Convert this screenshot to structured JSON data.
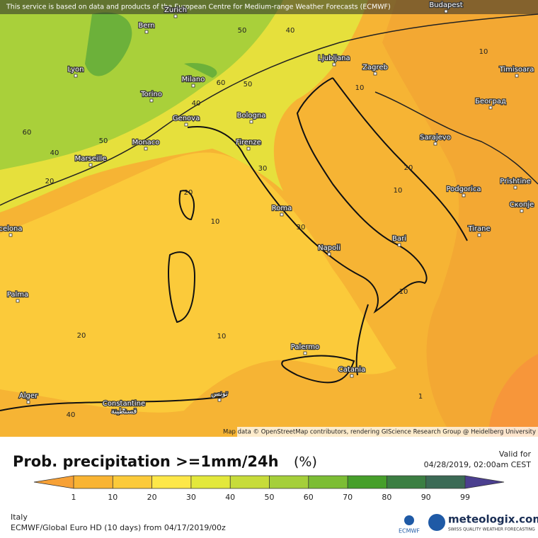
{
  "header": {
    "notice": "This service is based on data and products of the European Centre for Medium-range Weather Forecasts (ECMWF)"
  },
  "map": {
    "cities": [
      "Bern",
      "Zurich",
      "Lyon",
      "Torino",
      "Milano",
      "Genova",
      "Bologna",
      "Monaco",
      "Marseille",
      "Firenze",
      "Ljubljana",
      "Zagreb",
      "Budapest",
      "Timisoara",
      "Београд",
      "Sarajevo",
      "Podgorica",
      "Prishtine",
      "Скопје",
      "Tirane",
      "Roma",
      "Napoli",
      "Bari",
      "celona",
      "Palma",
      "Palermo",
      "Catania",
      "Alger",
      "Constantine",
      "قسنطينة",
      "تونس"
    ],
    "contour_labels": [
      "50",
      "40",
      "10",
      "40",
      "60",
      "50",
      "60",
      "40",
      "50",
      "20",
      "20",
      "30",
      "10",
      "30",
      "10",
      "20",
      "10",
      "10",
      "20",
      "10",
      "40",
      "1"
    ],
    "attribution": "Map data © OpenStreetMap contributors, rendering GIScience Research Group @ Heidelberg University"
  },
  "legend": {
    "title": "Prob. precipitation >=1mm/24h",
    "unit": "(%)",
    "valid_label": "Valid for",
    "valid_time": "04/28/2019, 02:00am CEST",
    "ticks": [
      1,
      10,
      20,
      30,
      40,
      50,
      60,
      70,
      80,
      90,
      99
    ],
    "colors": [
      "#f7a136",
      "#f9b433",
      "#fbca3a",
      "#fde748",
      "#e3e83b",
      "#c7dc3a",
      "#a5cf3a",
      "#7cbd34",
      "#469f2a",
      "#3b7e42",
      "#3b6a55",
      "#4b3f8f"
    ]
  },
  "footer": {
    "region": "Italy",
    "model": "ECMWF/Global Euro HD (10 days) from 04/17/2019/00z",
    "ecmwf_logo": "ECMWF",
    "brand": "meteologix.com",
    "brand_tagline": "SWISS QUALITY WEATHER FORECASTING"
  }
}
